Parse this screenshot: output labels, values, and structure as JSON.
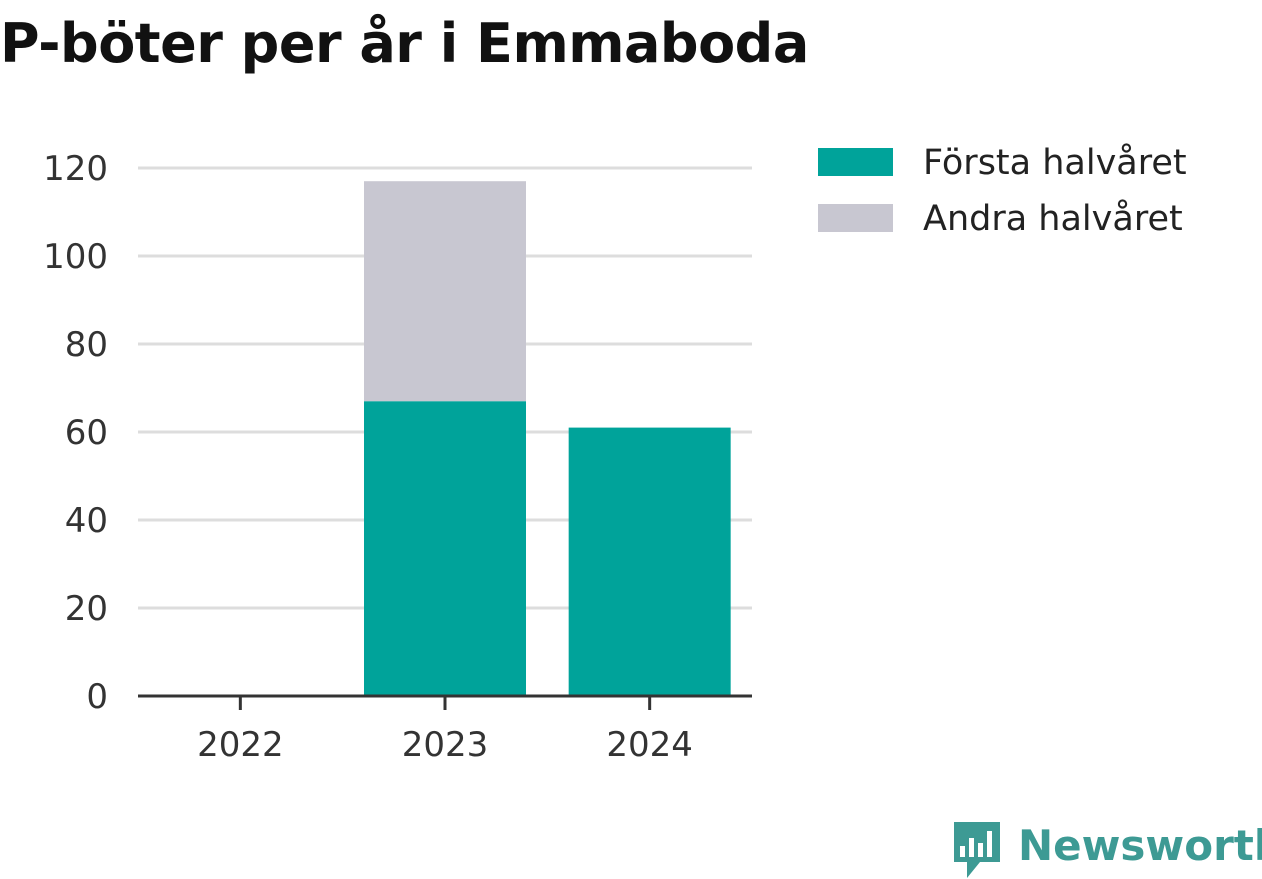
{
  "chart_data": {
    "type": "bar",
    "stacked": true,
    "title": "P-böter per år i Emmaboda",
    "xlabel": "",
    "ylabel": "",
    "categories": [
      "2022",
      "2023",
      "2024"
    ],
    "series": [
      {
        "name": "Första halvåret",
        "values": [
          0,
          67,
          61
        ],
        "color": "#00a39a"
      },
      {
        "name": "Andra halvåret",
        "values": [
          0,
          50,
          0
        ],
        "color": "#c8c7d1"
      }
    ],
    "ylim": [
      0,
      120
    ],
    "yticks": [
      0,
      20,
      40,
      60,
      80,
      100,
      120
    ],
    "grid": true,
    "legend_position": "top-right"
  },
  "branding": {
    "name": "Newsworthy",
    "icon": "newsworthy-logo-icon",
    "color": "#3d9a94"
  }
}
